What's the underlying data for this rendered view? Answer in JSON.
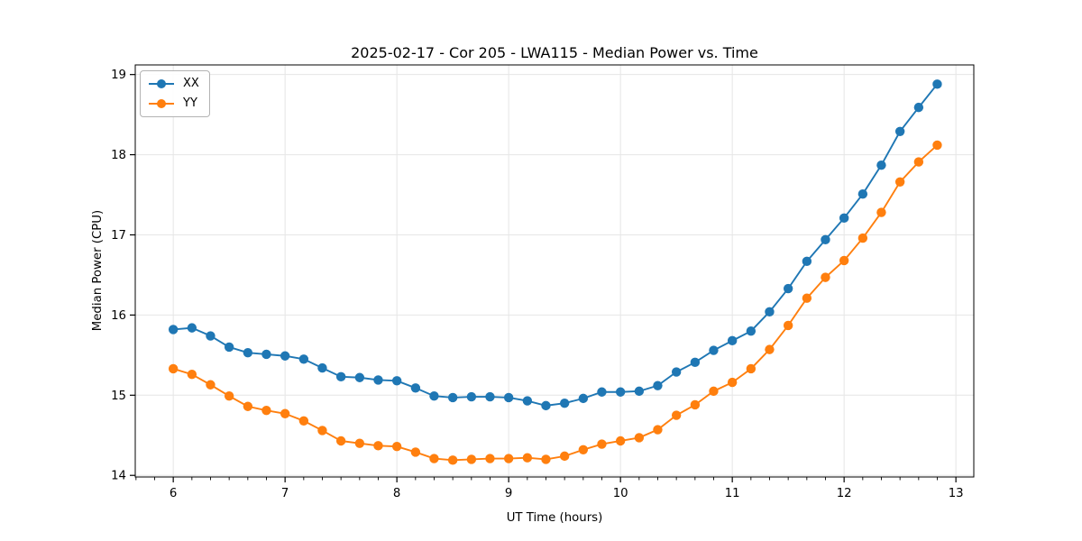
{
  "chart_data": {
    "type": "line",
    "title": "2025-02-17 - Cor 205 - LWA115 - Median Power vs. Time",
    "xlabel": "UT Time (hours)",
    "ylabel": "Median Power (CPU)",
    "xlim": [
      5.66,
      13.16
    ],
    "ylim": [
      13.98,
      19.12
    ],
    "x_ticks": [
      6,
      7,
      8,
      9,
      10,
      11,
      12,
      13
    ],
    "y_ticks": [
      14,
      15,
      16,
      17,
      18,
      19
    ],
    "x_minor_tick_step_hours": 0.1667,
    "grid": true,
    "legend_position": "upper left",
    "grid_color": "#e6e6e6",
    "x": [
      6.0,
      6.167,
      6.333,
      6.5,
      6.667,
      6.833,
      7.0,
      7.167,
      7.333,
      7.5,
      7.667,
      7.833,
      8.0,
      8.167,
      8.333,
      8.5,
      8.667,
      8.833,
      9.0,
      9.167,
      9.333,
      9.5,
      9.667,
      9.833,
      10.0,
      10.167,
      10.333,
      10.5,
      10.667,
      10.833,
      11.0,
      11.167,
      11.333,
      11.5,
      11.667,
      11.833,
      12.0,
      12.167,
      12.333,
      12.5,
      12.667,
      12.833
    ],
    "series": [
      {
        "name": "XX",
        "color": "#1f77b4",
        "values": [
          15.82,
          15.84,
          15.74,
          15.6,
          15.53,
          15.51,
          15.49,
          15.45,
          15.34,
          15.23,
          15.22,
          15.19,
          15.18,
          15.09,
          14.99,
          14.97,
          14.98,
          14.98,
          14.97,
          14.93,
          14.87,
          14.9,
          14.96,
          15.04,
          15.04,
          15.05,
          15.12,
          15.29,
          15.41,
          15.56,
          15.68,
          15.8,
          16.04,
          16.33,
          16.67,
          16.94,
          17.21,
          17.51,
          17.87,
          18.29,
          18.59,
          18.88
        ]
      },
      {
        "name": "YY",
        "color": "#ff7f0e",
        "values": [
          15.33,
          15.26,
          15.13,
          14.99,
          14.86,
          14.81,
          14.77,
          14.68,
          14.56,
          14.43,
          14.4,
          14.37,
          14.36,
          14.29,
          14.21,
          14.19,
          14.2,
          14.21,
          14.21,
          14.22,
          14.2,
          14.24,
          14.32,
          14.39,
          14.43,
          14.47,
          14.57,
          14.75,
          14.88,
          15.05,
          15.16,
          15.33,
          15.57,
          15.87,
          16.21,
          16.47,
          16.68,
          16.96,
          17.28,
          17.66,
          17.91,
          18.12
        ]
      }
    ]
  }
}
